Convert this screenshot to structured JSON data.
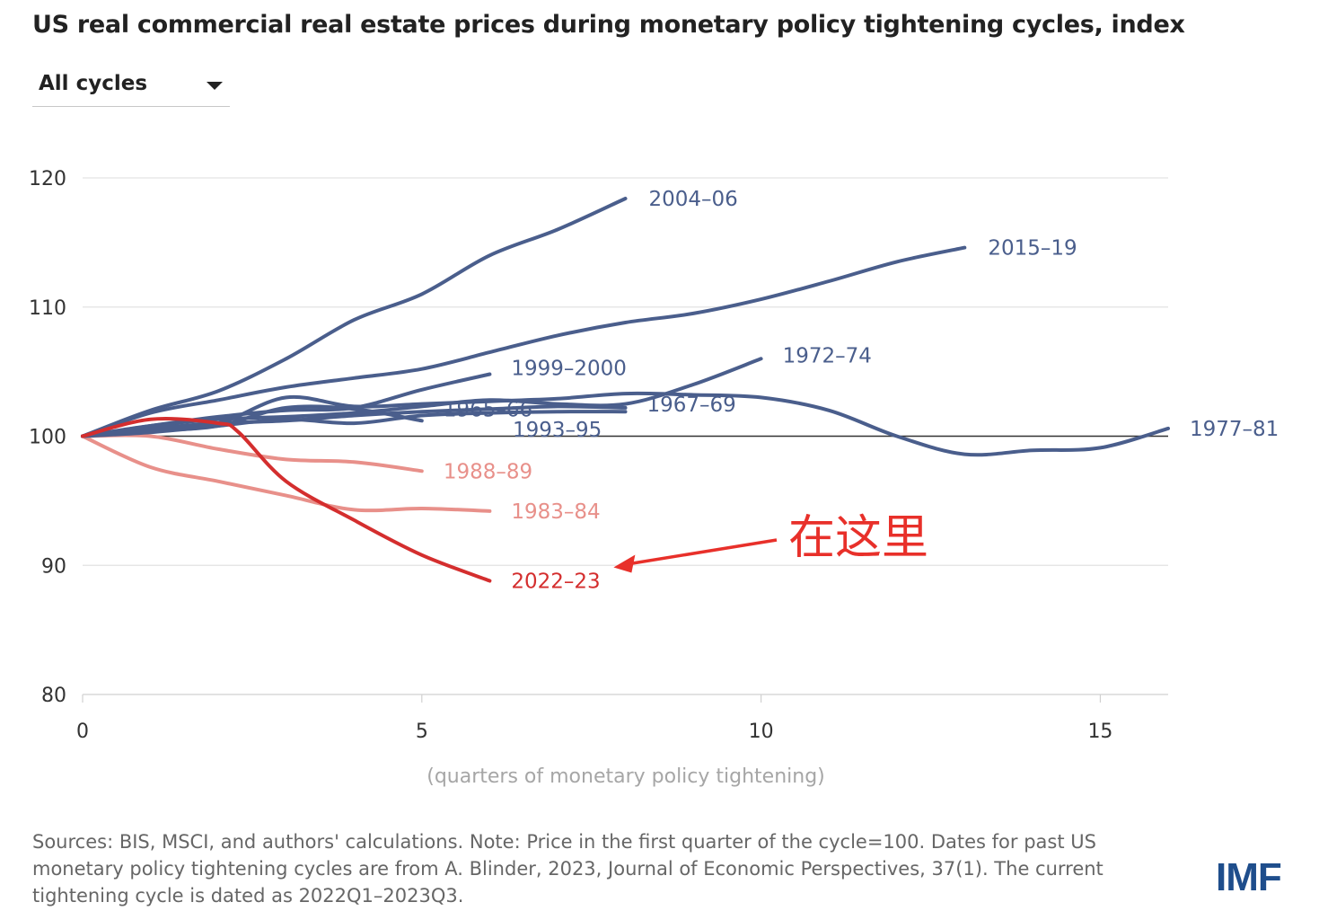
{
  "header": {
    "title": "US real commercial real estate prices during monetary policy tightening cycles, index"
  },
  "filter": {
    "selected": "All cycles"
  },
  "chart_data": {
    "type": "line",
    "title": "US real commercial real estate prices during monetary policy tightening cycles, index",
    "xlabel": "(quarters of monetary policy tightening)",
    "ylabel": "",
    "xlim": [
      0,
      16
    ],
    "ylim": [
      80,
      120
    ],
    "xticks": [
      0,
      5,
      10,
      15
    ],
    "yticks": [
      80,
      90,
      100,
      110,
      120
    ],
    "reference_line": 100,
    "grid": true,
    "series": [
      {
        "name": "2004–06",
        "color": "#4a5e8c",
        "x": [
          0,
          1,
          2,
          3,
          4,
          5,
          6,
          7,
          8
        ],
        "values": [
          100,
          102,
          103.5,
          106,
          109,
          111,
          114,
          116,
          118.4
        ]
      },
      {
        "name": "2015–19",
        "color": "#4a5e8c",
        "x": [
          0,
          1,
          2,
          3,
          4,
          5,
          6,
          7,
          8,
          9,
          10,
          11,
          12,
          13
        ],
        "values": [
          100,
          101.8,
          102.8,
          103.8,
          104.5,
          105.2,
          106.5,
          107.8,
          108.8,
          109.5,
          110.6,
          112,
          113.5,
          114.6
        ]
      },
      {
        "name": "1972–74",
        "color": "#4a5e8c",
        "x": [
          0,
          1,
          2,
          3,
          4,
          5,
          6,
          7,
          8,
          9,
          10
        ],
        "values": [
          100,
          100.8,
          101.3,
          101.5,
          101.8,
          102.3,
          102.8,
          102.5,
          102.5,
          104,
          106
        ]
      },
      {
        "name": "1999–2000",
        "color": "#4a5e8c",
        "x": [
          0,
          1,
          2,
          3,
          4,
          5,
          6
        ],
        "values": [
          100,
          100.8,
          101.5,
          102,
          102.2,
          103.6,
          104.8
        ]
      },
      {
        "name": "1967–69",
        "color": "#4a5e8c",
        "x": [
          0,
          1,
          2,
          3,
          4,
          5,
          6,
          7,
          8
        ],
        "values": [
          100,
          100.6,
          101,
          101.2,
          101.6,
          101.9,
          102.1,
          102.3,
          102.2
        ]
      },
      {
        "name": "1965–66",
        "color": "#4a5e8c",
        "x": [
          0,
          1,
          2,
          3,
          4,
          5
        ],
        "values": [
          100,
          100.4,
          100.8,
          102.2,
          102.1,
          101.2
        ]
      },
      {
        "name": "1993–95",
        "color": "#4a5e8c",
        "x": [
          0,
          1,
          2,
          3,
          4,
          5,
          6,
          7,
          8
        ],
        "values": [
          100,
          100.3,
          100.8,
          101.3,
          101,
          101.6,
          101.8,
          101.9,
          101.9
        ]
      },
      {
        "name": "1977–81",
        "color": "#4a5e8c",
        "x": [
          0,
          1,
          2,
          3,
          4,
          5,
          6,
          7,
          8,
          9,
          10,
          11,
          12,
          13,
          14,
          15,
          16
        ],
        "values": [
          100,
          100.5,
          101,
          103,
          102.3,
          102.5,
          102.7,
          102.9,
          103.3,
          103.2,
          103,
          102,
          100,
          98.6,
          98.9,
          99.1,
          100.6
        ]
      },
      {
        "name": "1988–89",
        "color": "#e8908a",
        "x": [
          0,
          1,
          2,
          3,
          4,
          5
        ],
        "values": [
          100,
          100,
          99,
          98.2,
          98,
          97.3
        ]
      },
      {
        "name": "1983–84",
        "color": "#e8908a",
        "x": [
          0,
          1,
          2,
          3,
          4,
          5,
          6
        ],
        "values": [
          100,
          97.6,
          96.5,
          95.4,
          94.3,
          94.4,
          94.2
        ]
      },
      {
        "name": "2022–23",
        "color": "#d42e2e",
        "x": [
          0,
          1,
          2,
          2.3,
          3,
          4,
          5,
          6
        ],
        "values": [
          100,
          101.3,
          101,
          100.3,
          96.5,
          93.5,
          90.8,
          88.8
        ]
      }
    ],
    "annotations": [
      {
        "text": "在这里",
        "color": "#e8302a",
        "points_to": "2022–23"
      }
    ]
  },
  "labels": {
    "x_axis": "(quarters of monetary policy tightening)"
  },
  "footer": {
    "note": "Sources: BIS, MSCI, and authors' calculations. Note: Price in the first quarter of the cycle=100. Dates for past US monetary policy tightening cycles are from A. Blinder, 2023, Journal of Economic Perspectives, 37(1). The current tightening cycle is dated as 2022Q1–2023Q3.",
    "logo": "IMF"
  },
  "colors": {
    "past_cycle": "#4a5e8c",
    "low_cycle": "#e8908a",
    "current_cycle": "#d42e2e",
    "annotation": "#e8302a"
  }
}
